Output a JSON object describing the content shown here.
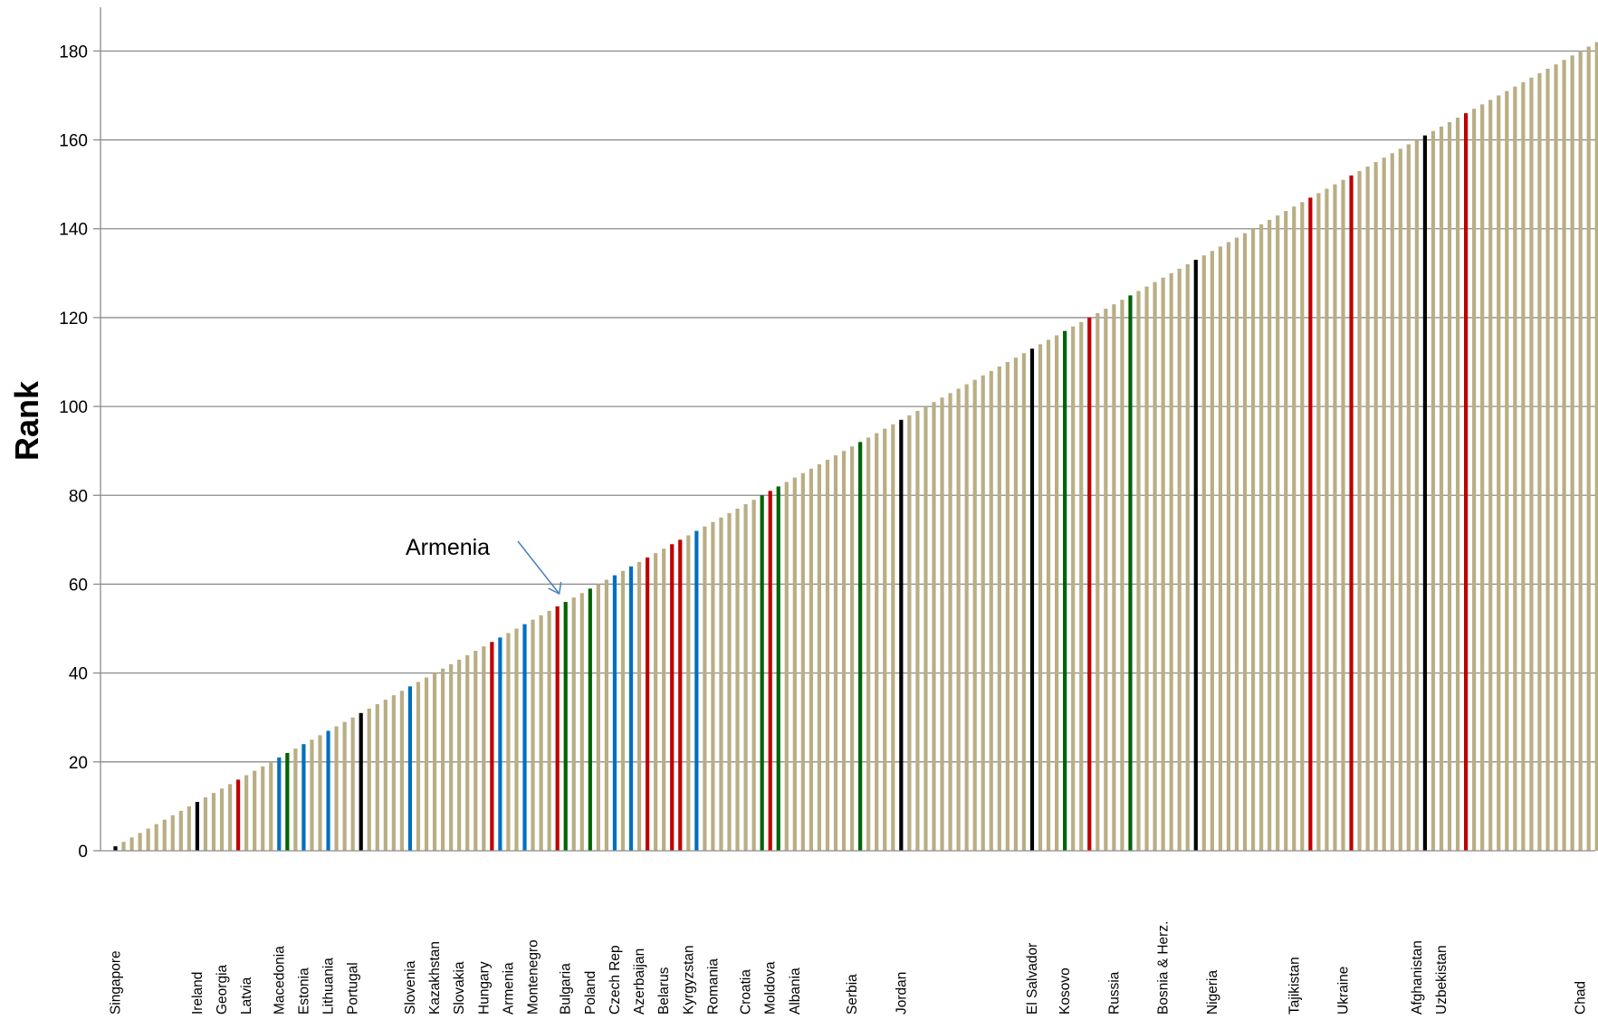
{
  "chart_data": {
    "type": "bar",
    "title": "",
    "xlabel": "",
    "ylabel": "Rank",
    "ylim": [
      0,
      190
    ],
    "yticks": [
      0,
      20,
      40,
      60,
      80,
      100,
      120,
      140,
      160,
      180
    ],
    "grid": "horizontal",
    "legend": "none",
    "bar_count": 183,
    "values": "rank 1 through 183, one bar per economy in rank order (bar i has value i)",
    "default_color": "#b9ae84",
    "highlight_colors": {
      "black": "#000000",
      "red": "#c00000",
      "green": "#006400",
      "blue": "#0070c0"
    },
    "highlighted": [
      {
        "rank": 1,
        "color": "black"
      },
      {
        "rank": 11,
        "color": "black"
      },
      {
        "rank": 16,
        "color": "red"
      },
      {
        "rank": 21,
        "color": "blue"
      },
      {
        "rank": 22,
        "color": "green"
      },
      {
        "rank": 24,
        "color": "blue"
      },
      {
        "rank": 27,
        "color": "blue"
      },
      {
        "rank": 31,
        "color": "black"
      },
      {
        "rank": 37,
        "color": "blue"
      },
      {
        "rank": 47,
        "color": "red"
      },
      {
        "rank": 48,
        "color": "blue"
      },
      {
        "rank": 51,
        "color": "blue"
      },
      {
        "rank": 55,
        "color": "red"
      },
      {
        "rank": 56,
        "color": "green"
      },
      {
        "rank": 59,
        "color": "green"
      },
      {
        "rank": 62,
        "color": "blue"
      },
      {
        "rank": 64,
        "color": "blue"
      },
      {
        "rank": 66,
        "color": "red"
      },
      {
        "rank": 69,
        "color": "red"
      },
      {
        "rank": 70,
        "color": "red"
      },
      {
        "rank": 72,
        "color": "blue"
      },
      {
        "rank": 80,
        "color": "green"
      },
      {
        "rank": 81,
        "color": "red"
      },
      {
        "rank": 82,
        "color": "green"
      },
      {
        "rank": 92,
        "color": "green"
      },
      {
        "rank": 97,
        "color": "black"
      },
      {
        "rank": 113,
        "color": "black"
      },
      {
        "rank": 117,
        "color": "green"
      },
      {
        "rank": 120,
        "color": "red"
      },
      {
        "rank": 125,
        "color": "green"
      },
      {
        "rank": 133,
        "color": "black"
      },
      {
        "rank": 147,
        "color": "red"
      },
      {
        "rank": 152,
        "color": "red"
      },
      {
        "rank": 161,
        "color": "black"
      },
      {
        "rank": 166,
        "color": "red"
      },
      {
        "rank": 183,
        "color": "black"
      }
    ],
    "labels": [
      {
        "rank": 1,
        "text": "Singapore"
      },
      {
        "rank": 11,
        "text": "Ireland"
      },
      {
        "rank": 14,
        "text": "Georgia"
      },
      {
        "rank": 17,
        "text": "Latvia"
      },
      {
        "rank": 21,
        "text": "Macedonia"
      },
      {
        "rank": 24,
        "text": "Estonia"
      },
      {
        "rank": 27,
        "text": "Lithuania"
      },
      {
        "rank": 30,
        "text": "Portugal"
      },
      {
        "rank": 37,
        "text": "Slovenia"
      },
      {
        "rank": 40,
        "text": "Kazakhstan"
      },
      {
        "rank": 43,
        "text": "Slovakia"
      },
      {
        "rank": 46,
        "text": "Hungary"
      },
      {
        "rank": 49,
        "text": "Armenia"
      },
      {
        "rank": 52,
        "text": "Montenegro"
      },
      {
        "rank": 56,
        "text": "Bulgaria"
      },
      {
        "rank": 59,
        "text": "Poland"
      },
      {
        "rank": 62,
        "text": "Czech Rep"
      },
      {
        "rank": 65,
        "text": "Azerbaijan"
      },
      {
        "rank": 68,
        "text": "Belarus"
      },
      {
        "rank": 71,
        "text": "Kyrgyzstan"
      },
      {
        "rank": 74,
        "text": "Romania"
      },
      {
        "rank": 78,
        "text": "Croatia"
      },
      {
        "rank": 81,
        "text": "Moldova"
      },
      {
        "rank": 84,
        "text": "Albania"
      },
      {
        "rank": 91,
        "text": "Serbia"
      },
      {
        "rank": 97,
        "text": "Jordan"
      },
      {
        "rank": 113,
        "text": "El Salvador"
      },
      {
        "rank": 117,
        "text": "Kosovo"
      },
      {
        "rank": 123,
        "text": "Russia"
      },
      {
        "rank": 129,
        "text": "Bosnia & Herz."
      },
      {
        "rank": 135,
        "text": "Nigeria"
      },
      {
        "rank": 145,
        "text": "Tajikistan"
      },
      {
        "rank": 151,
        "text": "Ukraine"
      },
      {
        "rank": 160,
        "text": "Afghanistan"
      },
      {
        "rank": 163,
        "text": "Uzbekistan"
      },
      {
        "rank": 180,
        "text": "Chad"
      }
    ],
    "annotations": [
      {
        "text": "Armenia",
        "points_to_rank": 55
      }
    ]
  }
}
